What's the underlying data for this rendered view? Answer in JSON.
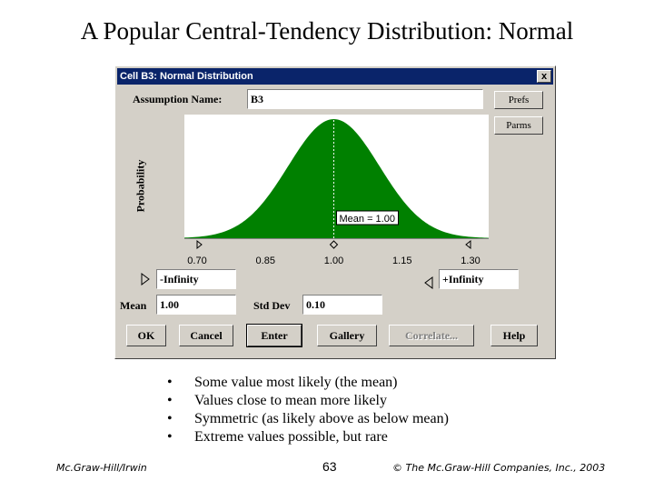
{
  "slide": {
    "title": "A Popular Central-Tendency Distribution: Normal",
    "bullets": [
      "Some value most likely (the mean)",
      "Values close to mean more likely",
      "Symmetric (as likely above as below mean)",
      "Extreme values possible, but rare"
    ],
    "bullet_glyph": "•",
    "footer_left": "Mc.Graw-Hill/Irwin",
    "page_number": "63",
    "footer_right": "© The Mc.Graw-Hill Companies, Inc., 2003"
  },
  "dialog": {
    "title": "Cell B3: Normal Distribution",
    "close_glyph": "x",
    "assumption_label": "Assumption Name:",
    "assumption_value": "B3",
    "prefs_label": "Prefs",
    "parms_label": "Parms",
    "y_axis_label": "Probability",
    "lower_bound_value": "-Infinity",
    "upper_bound_value": "+Infinity",
    "mean_label": "Mean",
    "mean_value": "1.00",
    "stddev_label": "Std Dev",
    "stddev_value": "0.10",
    "buttons": {
      "ok": "OK",
      "cancel": "Cancel",
      "enter": "Enter",
      "gallery": "Gallery",
      "correlate": "Correlate...",
      "help": "Help"
    },
    "colors": {
      "fill": "#008000",
      "titlebar": "#0a246a",
      "face": "#d4d0c8"
    }
  },
  "chart_data": {
    "type": "area",
    "distribution": "normal",
    "mean": 1.0,
    "std_dev": 0.1,
    "x_ticks": [
      "0.70",
      "0.85",
      "1.00",
      "1.15",
      "1.30"
    ],
    "xlim": [
      0.7,
      1.3
    ],
    "ylabel": "Probability",
    "mean_annotation": "Mean = 1.00"
  }
}
